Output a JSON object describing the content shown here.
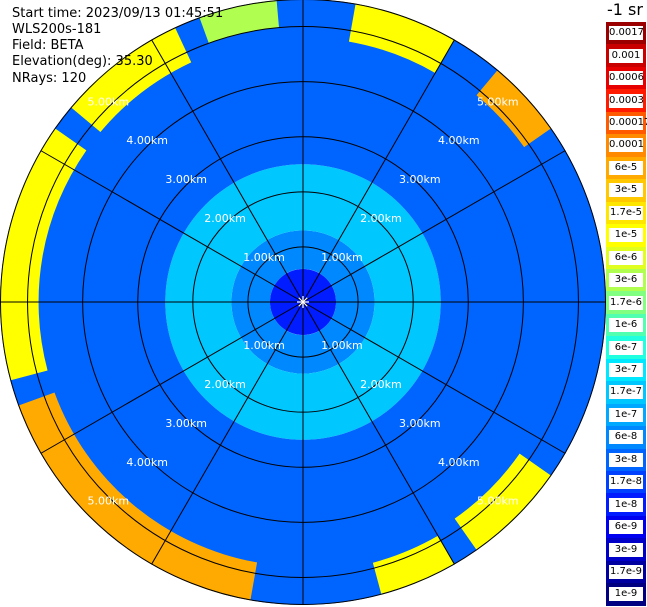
{
  "info": {
    "start_time": "Start time: 2023/09/13 01:45:51",
    "device": "WLS200s-181",
    "field": "Field: BETA",
    "elevation": "Elevation(deg): 35.30",
    "nrays": "NRays: 120"
  },
  "units_label": "-1 sr",
  "colors": {
    "background": "#ffffff",
    "grid": "#000000",
    "range_label": "#ffffff"
  },
  "chart_data": {
    "type": "heatmap",
    "projection": "polar-ppi",
    "max_range_km": 5.5,
    "rays": 120,
    "range_rings_km": [
      1,
      2,
      3,
      4,
      5
    ],
    "radial_spokes_deg": [
      0,
      30,
      60,
      90,
      120,
      150,
      180,
      210,
      240,
      270,
      300,
      330
    ],
    "range_labels": [
      "1.00km",
      "2.00km",
      "3.00km",
      "4.00km",
      "5.00km"
    ],
    "colorbar": {
      "scale": "log",
      "ticks": [
        "0.0017",
        "0.001",
        "0.0006",
        "0.0003",
        "0.00017",
        "0.0001",
        "6e-5",
        "3e-5",
        "1.7e-5",
        "1e-5",
        "6e-6",
        "3e-6",
        "1.7e-6",
        "1e-6",
        "6e-7",
        "3e-7",
        "1.7e-7",
        "1e-7",
        "6e-8",
        "3e-8",
        "1.7e-8",
        "1e-8",
        "6e-9",
        "3e-9",
        "1.7e-9",
        "1e-9"
      ],
      "colors": [
        "#9a0000",
        "#c80000",
        "#e60000",
        "#ff1a00",
        "#ff5a00",
        "#ff8a00",
        "#ffaa00",
        "#ffc800",
        "#ffe600",
        "#ffff00",
        "#e0ff20",
        "#b0ff50",
        "#80ff80",
        "#50ffb0",
        "#20ffe0",
        "#00e8ff",
        "#00c8ff",
        "#00a8ff",
        "#0088ff",
        "#0064ff",
        "#0040ff",
        "#001cff",
        "#0000f0",
        "#0000c8",
        "#0000a0",
        "#000080"
      ]
    },
    "regions": [
      {
        "range_km": [
          0,
          0.6
        ],
        "az_deg": [
          0,
          360
        ],
        "value": 1e-08
      },
      {
        "range_km": [
          0.6,
          1.3
        ],
        "az_deg": [
          0,
          360
        ],
        "value": 6e-08
      },
      {
        "range_km": [
          1.3,
          2.5
        ],
        "az_deg": [
          0,
          360
        ],
        "value": 1.7e-07
      },
      {
        "range_km": [
          2.5,
          5.5
        ],
        "az_deg": [
          0,
          360
        ],
        "value": 3e-08
      },
      {
        "range_km": [
          4.8,
          5.5
        ],
        "az_deg": [
          10,
          30
        ],
        "value": 1e-05
      },
      {
        "range_km": [
          4.9,
          5.5
        ],
        "az_deg": [
          40,
          55
        ],
        "value": 6e-05
      },
      {
        "range_km": [
          4.8,
          5.5
        ],
        "az_deg": [
          125,
          145
        ],
        "value": 1e-05
      },
      {
        "range_km": [
          4.9,
          5.5
        ],
        "az_deg": [
          150,
          165
        ],
        "value": 1e-05
      },
      {
        "range_km": [
          4.8,
          5.5
        ],
        "az_deg": [
          190,
          250
        ],
        "value": 6e-05
      },
      {
        "range_km": [
          4.8,
          5.5
        ],
        "az_deg": [
          255,
          305
        ],
        "value": 1e-05
      },
      {
        "range_km": [
          4.8,
          5.5
        ],
        "az_deg": [
          310,
          335
        ],
        "value": 1e-05
      },
      {
        "range_km": [
          5.0,
          5.5
        ],
        "az_deg": [
          340,
          355
        ],
        "value": 3e-06
      }
    ]
  }
}
